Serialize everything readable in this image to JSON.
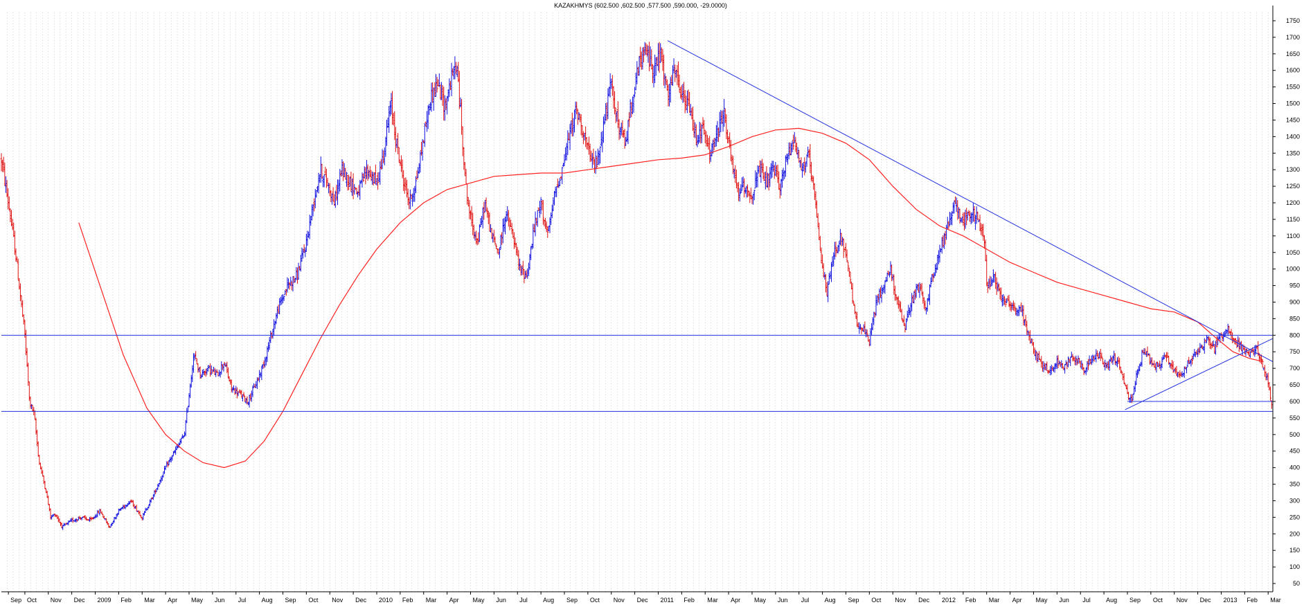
{
  "chart_data": {
    "type": "bar",
    "style": "ohlc",
    "title": "KAZAKHMYS (602.500 ,602.500 ,577.500 ,590.000, -29.0000)",
    "xlabel": "",
    "ylabel": "",
    "ylim": [
      25,
      1775
    ],
    "y_ticks": [
      50,
      100,
      150,
      200,
      250,
      300,
      350,
      400,
      450,
      500,
      550,
      600,
      650,
      700,
      750,
      800,
      850,
      900,
      950,
      1000,
      1050,
      1100,
      1150,
      1200,
      1250,
      1300,
      1350,
      1400,
      1450,
      1500,
      1550,
      1600,
      1650,
      1700,
      1750
    ],
    "y_axis_side": "right",
    "grid": "vertical-dotted",
    "x_ticks": [
      {
        "label": "Sep",
        "month": 0.3
      },
      {
        "label": "Oct",
        "month": 1
      },
      {
        "label": "Nov",
        "month": 2
      },
      {
        "label": "Dec",
        "month": 3
      },
      {
        "label": "2009",
        "month": 4
      },
      {
        "label": "Feb",
        "month": 5
      },
      {
        "label": "Mar",
        "month": 6
      },
      {
        "label": "Apr",
        "month": 7
      },
      {
        "label": "May",
        "month": 8
      },
      {
        "label": "Jun",
        "month": 9
      },
      {
        "label": "Jul",
        "month": 10
      },
      {
        "label": "Aug",
        "month": 11
      },
      {
        "label": "Sep",
        "month": 12
      },
      {
        "label": "Oct",
        "month": 13
      },
      {
        "label": "Nov",
        "month": 14
      },
      {
        "label": "Dec",
        "month": 15
      },
      {
        "label": "2010",
        "month": 16
      },
      {
        "label": "Feb",
        "month": 17
      },
      {
        "label": "Mar",
        "month": 18
      },
      {
        "label": "Apr",
        "month": 19
      },
      {
        "label": "May",
        "month": 20
      },
      {
        "label": "Jun",
        "month": 21
      },
      {
        "label": "Jul",
        "month": 22
      },
      {
        "label": "Aug",
        "month": 23
      },
      {
        "label": "Sep",
        "month": 24
      },
      {
        "label": "Oct",
        "month": 25
      },
      {
        "label": "Nov",
        "month": 26
      },
      {
        "label": "Dec",
        "month": 27
      },
      {
        "label": "2011",
        "month": 28
      },
      {
        "label": "Feb",
        "month": 29
      },
      {
        "label": "Mar",
        "month": 30
      },
      {
        "label": "Apr",
        "month": 31
      },
      {
        "label": "May",
        "month": 32
      },
      {
        "label": "Jun",
        "month": 33
      },
      {
        "label": "Jul",
        "month": 34
      },
      {
        "label": "Aug",
        "month": 35
      },
      {
        "label": "Sep",
        "month": 36
      },
      {
        "label": "Oct",
        "month": 37
      },
      {
        "label": "Nov",
        "month": 38
      },
      {
        "label": "Dec",
        "month": 39
      },
      {
        "label": "2012",
        "month": 40
      },
      {
        "label": "Feb",
        "month": 41
      },
      {
        "label": "Mar",
        "month": 42
      },
      {
        "label": "Apr",
        "month": 43
      },
      {
        "label": "May",
        "month": 44
      },
      {
        "label": "Jun",
        "month": 45
      },
      {
        "label": "Jul",
        "month": 46
      },
      {
        "label": "Aug",
        "month": 47
      },
      {
        "label": "Sep",
        "month": 48
      },
      {
        "label": "Oct",
        "month": 49
      },
      {
        "label": "Nov",
        "month": 50
      },
      {
        "label": "Dec",
        "month": 51
      },
      {
        "label": "2013",
        "month": 52
      },
      {
        "label": "Feb",
        "month": 53
      },
      {
        "label": "Mar",
        "month": 54
      }
    ],
    "x_range_months": [
      0,
      54.2
    ],
    "series": [
      {
        "kind": "ohlc",
        "up_color": "#1010e0",
        "down_color": "#e01010",
        "price_path": [
          [
            0.0,
            1330
          ],
          [
            0.3,
            1200
          ],
          [
            0.6,
            1050
          ],
          [
            1.0,
            800
          ],
          [
            1.2,
            600
          ],
          [
            1.4,
            560
          ],
          [
            1.6,
            420
          ],
          [
            1.9,
            330
          ],
          [
            2.1,
            250
          ],
          [
            2.3,
            260
          ],
          [
            2.6,
            220
          ],
          [
            3.0,
            240
          ],
          [
            3.4,
            250
          ],
          [
            3.8,
            240
          ],
          [
            4.2,
            270
          ],
          [
            4.6,
            220
          ],
          [
            5.0,
            270
          ],
          [
            5.5,
            300
          ],
          [
            6.0,
            250
          ],
          [
            6.5,
            320
          ],
          [
            7.0,
            400
          ],
          [
            7.4,
            450
          ],
          [
            7.8,
            500
          ],
          [
            8.0,
            620
          ],
          [
            8.2,
            740
          ],
          [
            8.5,
            680
          ],
          [
            8.8,
            700
          ],
          [
            9.2,
            680
          ],
          [
            9.5,
            720
          ],
          [
            9.8,
            640
          ],
          [
            10.2,
            620
          ],
          [
            10.5,
            600
          ],
          [
            10.9,
            660
          ],
          [
            11.2,
            720
          ],
          [
            11.5,
            800
          ],
          [
            11.8,
            880
          ],
          [
            12.2,
            950
          ],
          [
            12.6,
            980
          ],
          [
            13.0,
            1080
          ],
          [
            13.3,
            1200
          ],
          [
            13.6,
            1300
          ],
          [
            13.9,
            1260
          ],
          [
            14.2,
            1200
          ],
          [
            14.5,
            1300
          ],
          [
            14.8,
            1270
          ],
          [
            15.2,
            1230
          ],
          [
            15.6,
            1300
          ],
          [
            16.0,
            1260
          ],
          [
            16.3,
            1350
          ],
          [
            16.6,
            1500
          ],
          [
            16.8,
            1400
          ],
          [
            17.1,
            1280
          ],
          [
            17.4,
            1200
          ],
          [
            17.7,
            1270
          ],
          [
            18.0,
            1400
          ],
          [
            18.3,
            1520
          ],
          [
            18.6,
            1560
          ],
          [
            18.9,
            1490
          ],
          [
            19.2,
            1580
          ],
          [
            19.4,
            1620
          ],
          [
            19.6,
            1450
          ],
          [
            19.8,
            1250
          ],
          [
            20.0,
            1150
          ],
          [
            20.3,
            1080
          ],
          [
            20.6,
            1200
          ],
          [
            20.9,
            1100
          ],
          [
            21.2,
            1050
          ],
          [
            21.5,
            1170
          ],
          [
            21.8,
            1100
          ],
          [
            22.1,
            1000
          ],
          [
            22.4,
            980
          ],
          [
            22.7,
            1120
          ],
          [
            23.0,
            1200
          ],
          [
            23.3,
            1100
          ],
          [
            23.6,
            1230
          ],
          [
            23.9,
            1300
          ],
          [
            24.2,
            1400
          ],
          [
            24.5,
            1480
          ],
          [
            24.8,
            1420
          ],
          [
            25.1,
            1330
          ],
          [
            25.4,
            1320
          ],
          [
            25.7,
            1450
          ],
          [
            26.0,
            1560
          ],
          [
            26.3,
            1430
          ],
          [
            26.6,
            1380
          ],
          [
            26.9,
            1520
          ],
          [
            27.2,
            1620
          ],
          [
            27.5,
            1660
          ],
          [
            27.8,
            1600
          ],
          [
            28.1,
            1650
          ],
          [
            28.4,
            1520
          ],
          [
            28.7,
            1600
          ],
          [
            29.0,
            1520
          ],
          [
            29.3,
            1490
          ],
          [
            29.6,
            1400
          ],
          [
            29.9,
            1420
          ],
          [
            30.2,
            1350
          ],
          [
            30.5,
            1400
          ],
          [
            30.8,
            1480
          ],
          [
            31.1,
            1330
          ],
          [
            31.4,
            1230
          ],
          [
            31.7,
            1250
          ],
          [
            32.0,
            1220
          ],
          [
            32.3,
            1300
          ],
          [
            32.6,
            1260
          ],
          [
            32.9,
            1300
          ],
          [
            33.2,
            1250
          ],
          [
            33.5,
            1340
          ],
          [
            33.8,
            1400
          ],
          [
            34.1,
            1300
          ],
          [
            34.4,
            1340
          ],
          [
            34.7,
            1200
          ],
          [
            34.9,
            1050
          ],
          [
            35.2,
            930
          ],
          [
            35.5,
            1050
          ],
          [
            35.8,
            1100
          ],
          [
            36.1,
            1000
          ],
          [
            36.4,
            850
          ],
          [
            36.7,
            820
          ],
          [
            37.0,
            780
          ],
          [
            37.3,
            900
          ],
          [
            37.6,
            950
          ],
          [
            37.9,
            1000
          ],
          [
            38.2,
            900
          ],
          [
            38.5,
            820
          ],
          [
            38.8,
            900
          ],
          [
            39.1,
            950
          ],
          [
            39.4,
            880
          ],
          [
            39.7,
            980
          ],
          [
            40.0,
            1050
          ],
          [
            40.3,
            1120
          ],
          [
            40.5,
            1170
          ],
          [
            40.7,
            1200
          ],
          [
            41.0,
            1140
          ],
          [
            41.3,
            1170
          ],
          [
            41.6,
            1150
          ],
          [
            41.9,
            1100
          ],
          [
            42.0,
            950
          ],
          [
            42.3,
            980
          ],
          [
            42.6,
            920
          ],
          [
            42.9,
            900
          ],
          [
            43.2,
            880
          ],
          [
            43.5,
            870
          ],
          [
            43.8,
            800
          ],
          [
            44.1,
            740
          ],
          [
            44.4,
            710
          ],
          [
            44.7,
            690
          ],
          [
            45.0,
            720
          ],
          [
            45.3,
            700
          ],
          [
            45.6,
            740
          ],
          [
            45.9,
            720
          ],
          [
            46.2,
            700
          ],
          [
            46.5,
            730
          ],
          [
            46.8,
            740
          ],
          [
            47.1,
            700
          ],
          [
            47.4,
            740
          ],
          [
            47.7,
            700
          ],
          [
            48.0,
            620
          ],
          [
            48.2,
            600
          ],
          [
            48.4,
            680
          ],
          [
            48.7,
            760
          ],
          [
            49.0,
            720
          ],
          [
            49.3,
            700
          ],
          [
            49.6,
            740
          ],
          [
            49.9,
            700
          ],
          [
            50.2,
            680
          ],
          [
            50.5,
            700
          ],
          [
            50.8,
            740
          ],
          [
            51.1,
            760
          ],
          [
            51.4,
            790
          ],
          [
            51.7,
            760
          ],
          [
            52.0,
            800
          ],
          [
            52.3,
            820
          ],
          [
            52.6,
            780
          ],
          [
            52.9,
            760
          ],
          [
            53.2,
            740
          ],
          [
            53.5,
            760
          ],
          [
            53.8,
            700
          ],
          [
            54.0,
            660
          ],
          [
            54.15,
            590
          ]
        ],
        "last_bar": {
          "open": 602.5,
          "high": 602.5,
          "low": 577.5,
          "close": 590.0,
          "change": -29.0
        }
      },
      {
        "kind": "line",
        "color": "#ff2020",
        "points": [
          [
            3.3,
            1140
          ],
          [
            4.2,
            950
          ],
          [
            5.2,
            740
          ],
          [
            6.2,
            580
          ],
          [
            7.0,
            500
          ],
          [
            7.8,
            450
          ],
          [
            8.6,
            415
          ],
          [
            9.5,
            400
          ],
          [
            10.4,
            420
          ],
          [
            11.2,
            480
          ],
          [
            12.0,
            570
          ],
          [
            12.8,
            680
          ],
          [
            13.6,
            790
          ],
          [
            14.4,
            890
          ],
          [
            15.2,
            980
          ],
          [
            16.0,
            1060
          ],
          [
            17.0,
            1140
          ],
          [
            18.0,
            1200
          ],
          [
            19.0,
            1240
          ],
          [
            20.0,
            1260
          ],
          [
            21.0,
            1280
          ],
          [
            22.0,
            1285
          ],
          [
            23.0,
            1290
          ],
          [
            24.0,
            1290
          ],
          [
            25.0,
            1300
          ],
          [
            26.0,
            1310
          ],
          [
            27.0,
            1320
          ],
          [
            28.0,
            1330
          ],
          [
            29.0,
            1335
          ],
          [
            30.0,
            1345
          ],
          [
            31.0,
            1370
          ],
          [
            32.0,
            1400
          ],
          [
            33.0,
            1420
          ],
          [
            34.0,
            1425
          ],
          [
            35.0,
            1410
          ],
          [
            36.0,
            1380
          ],
          [
            37.0,
            1330
          ],
          [
            38.0,
            1250
          ],
          [
            39.0,
            1180
          ],
          [
            40.0,
            1130
          ],
          [
            41.0,
            1100
          ],
          [
            42.0,
            1060
          ],
          [
            43.0,
            1020
          ],
          [
            44.0,
            990
          ],
          [
            45.0,
            960
          ],
          [
            46.0,
            940
          ],
          [
            47.0,
            920
          ],
          [
            48.0,
            900
          ],
          [
            49.0,
            880
          ],
          [
            50.0,
            870
          ],
          [
            51.0,
            840
          ],
          [
            51.8,
            790
          ],
          [
            52.5,
            750
          ],
          [
            53.2,
            730
          ],
          [
            53.8,
            720
          ]
        ]
      }
    ],
    "trendlines": [
      {
        "name": "",
        "color": "#2030e0",
        "from": [
          28.4,
          1690
        ],
        "to": [
          54.2,
          720
        ]
      },
      {
        "name": "",
        "color": "#2030e0",
        "from": [
          0.0,
          800
        ],
        "to": [
          54.2,
          800
        ]
      },
      {
        "name": "",
        "color": "#2030e0",
        "from": [
          0.0,
          570
        ],
        "to": [
          54.2,
          570
        ]
      },
      {
        "name": "",
        "color": "#2030e0",
        "from": [
          47.9,
          575
        ],
        "to": [
          54.2,
          790
        ]
      },
      {
        "name": "",
        "color": "#2030e0",
        "from": [
          48.0,
          600
        ],
        "to": [
          54.2,
          600
        ]
      }
    ],
    "colors": {
      "background": "#ffffff",
      "grid": "#a0a0a0",
      "up_bar": "#1010e0",
      "down_bar": "#e01010",
      "moving_average": "#ff2020",
      "trendline": "#2030e0",
      "axis": "#000000"
    }
  }
}
